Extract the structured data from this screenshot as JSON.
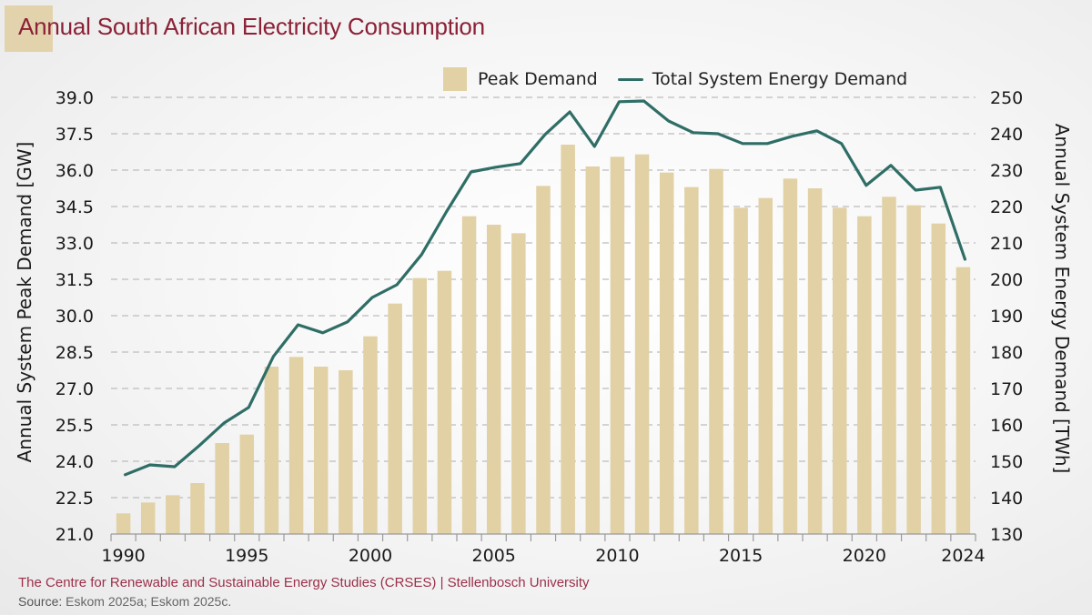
{
  "title": "Annual South African Electricity Consumption",
  "legend": {
    "peak_label": "Peak Demand",
    "energy_label": "Total System Energy Demand"
  },
  "footer": {
    "credit": "The Centre for Renewable and Sustainable Energy Studies (CRSES) | Stellenbosch University",
    "source_prefix": "Source:",
    "source_text": "Eskom 2025a; Eskom 2025c."
  },
  "colors": {
    "title": "#8b2136",
    "bar": "#e1d1a5",
    "line": "#2f6e66",
    "grid": "#bdbdbd",
    "credit": "#9c2f4a"
  },
  "chart_data": {
    "type": "bar",
    "title": "Annual South African Electricity Consumption",
    "xlabel": "",
    "ylabel": "Annual System Peak Demand [GW]",
    "y2label": "Annual System Energy Demand [TWh]",
    "ylim": [
      21.0,
      39.0
    ],
    "y2lim": [
      130,
      250
    ],
    "yticks": [
      "21.0",
      "22.5",
      "24.0",
      "25.5",
      "27.0",
      "28.5",
      "30.0",
      "31.5",
      "33.0",
      "34.5",
      "36.0",
      "37.5",
      "39.0"
    ],
    "y2ticks": [
      "130",
      "140",
      "150",
      "160",
      "170",
      "180",
      "190",
      "200",
      "210",
      "220",
      "230",
      "240",
      "250"
    ],
    "xticks": [
      "1990",
      "1995",
      "2000",
      "2005",
      "2010",
      "2015",
      "2020",
      "2024"
    ],
    "grid": true,
    "legend_position": "top-right",
    "x": [
      1990,
      1991,
      1992,
      1993,
      1994,
      1995,
      1996,
      1997,
      1998,
      1999,
      2000,
      2001,
      2002,
      2003,
      2004,
      2005,
      2006,
      2007,
      2008,
      2009,
      2010,
      2011,
      2012,
      2013,
      2014,
      2015,
      2016,
      2017,
      2018,
      2019,
      2020,
      2021,
      2022,
      2023,
      2024
    ],
    "series": [
      {
        "name": "Peak Demand",
        "type": "bar",
        "axis": "left",
        "unit": "GW",
        "values": [
          21.85,
          22.3,
          22.6,
          23.1,
          24.75,
          25.1,
          27.9,
          28.3,
          27.9,
          27.75,
          29.15,
          30.5,
          31.55,
          31.85,
          34.1,
          33.75,
          33.4,
          35.35,
          37.05,
          36.15,
          36.55,
          36.65,
          35.9,
          35.3,
          36.05,
          34.45,
          34.85,
          35.65,
          35.25,
          34.45,
          34.1,
          34.9,
          34.55,
          33.8,
          32.0
        ]
      },
      {
        "name": "Total System Energy Demand",
        "type": "line",
        "axis": "right",
        "unit": "TWh",
        "values": [
          146.3,
          149.0,
          148.5,
          154.3,
          160.5,
          164.8,
          178.8,
          187.5,
          185.3,
          188.3,
          195.0,
          198.5,
          206.8,
          218.5,
          229.5,
          230.8,
          231.8,
          239.8,
          246.0,
          236.5,
          248.8,
          249.0,
          243.5,
          240.3,
          240.0,
          237.3,
          237.3,
          239.3,
          240.8,
          237.3,
          225.8,
          231.3,
          224.5,
          225.3,
          205.5
        ]
      }
    ]
  }
}
